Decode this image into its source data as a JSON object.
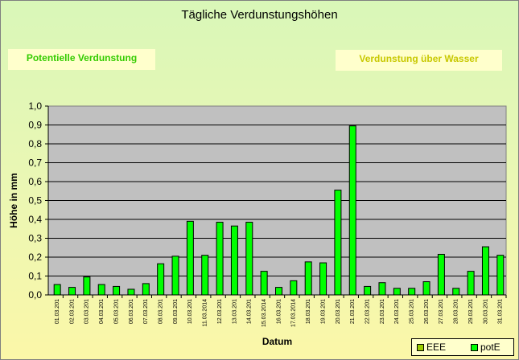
{
  "chart_data": {
    "type": "bar",
    "title": "Tägliche Verdunstungshöhen",
    "xlabel": "Datum",
    "ylabel": "Höhe in mm",
    "ylim": [
      0,
      1.0
    ],
    "yticks": [
      "0,0",
      "0,1",
      "0,2",
      "0,3",
      "0,4",
      "0,5",
      "0,6",
      "0,7",
      "0,8",
      "0,9",
      "1,0"
    ],
    "grid": true,
    "legend_position": "bottom-right",
    "annotations": [
      "Potentielle Verdunstung",
      "Verdunstung über Wasser"
    ],
    "categories": [
      "01.03.201",
      "02.03.201",
      "03.03.201",
      "04.03.201",
      "05.03.201",
      "06.03.201",
      "07.03.201",
      "08.03.201",
      "09.03.201",
      "10.03.201",
      "11.03.2014",
      "12.03.201",
      "13.03.201",
      "14.03.201",
      "15.03.2014",
      "16.03.201",
      "17.03.2014",
      "18.03.201",
      "19.03.201",
      "20.03.201",
      "21.03.201",
      "22.03.201",
      "23.03.201",
      "24.03.201",
      "25.03.201",
      "26.03.201",
      "27.03.201",
      "28.03.201",
      "29.03.201",
      "30.03.201",
      "31.03.201"
    ],
    "series": [
      {
        "name": "EEE",
        "color": "#99cc00",
        "values": [
          0,
          0,
          0,
          0,
          0,
          0,
          0,
          0,
          0,
          0,
          0,
          0,
          0,
          0,
          0,
          0,
          0,
          0,
          0,
          0,
          0,
          0,
          0,
          0,
          0,
          0,
          0,
          0,
          0,
          0,
          0
        ]
      },
      {
        "name": "potE",
        "color": "#00ff00",
        "values": [
          0.055,
          0.04,
          0.095,
          0.055,
          0.045,
          0.03,
          0.06,
          0.165,
          0.205,
          0.39,
          0.21,
          0.385,
          0.365,
          0.385,
          0.125,
          0.04,
          0.075,
          0.175,
          0.17,
          0.555,
          0.895,
          0.045,
          0.065,
          0.035,
          0.035,
          0.07,
          0.215,
          0.035,
          0.125,
          0.255,
          0.21
        ]
      }
    ]
  }
}
